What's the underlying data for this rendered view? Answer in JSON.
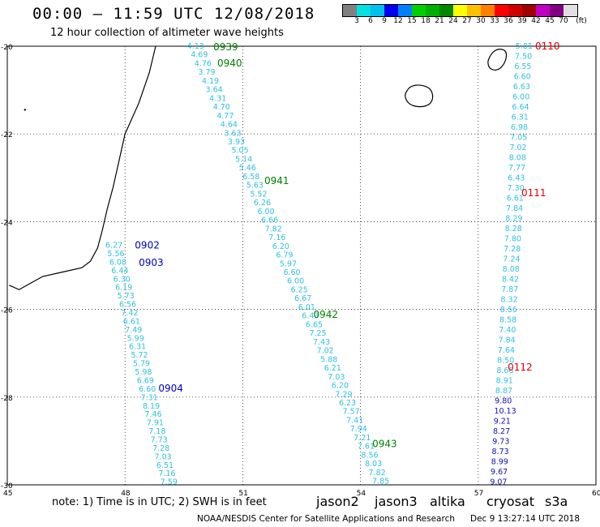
{
  "header": {
    "title": "00:00 – 11:59 UTC 12/08/2018",
    "subtitle": "12 hour collection of altimeter wave heights"
  },
  "color_scale": {
    "unit_label": "(ft)",
    "colors": [
      "#808080",
      "#00e0e0",
      "#00c0f0",
      "#0000f0",
      "#0080ff",
      "#00d000",
      "#00b000",
      "#008800",
      "#ffff00",
      "#ffc000",
      "#ff8000",
      "#ff0000",
      "#d00000",
      "#a00000",
      "#c000c0",
      "#800080",
      "#e0e0e0"
    ],
    "ticks": [
      "3",
      "6",
      "9",
      "12",
      "15",
      "18",
      "21",
      "24",
      "27",
      "30",
      "33",
      "36",
      "39",
      "42",
      "45",
      "70"
    ]
  },
  "map": {
    "lat_ticks": [
      "-20",
      "-22",
      "-24",
      "-26",
      "-28",
      "-30"
    ],
    "lon_ticks": [
      "45",
      "48",
      "51",
      "54",
      "57",
      "60"
    ]
  },
  "tracks": [
    {
      "name": "track-west",
      "color": "#30c0e0",
      "times": [
        {
          "text": "0902",
          "color": "#0000c0",
          "lat": -24.52,
          "lon": 48.25
        },
        {
          "text": "0903",
          "color": "#0000c0",
          "lat": -24.92,
          "lon": 48.35
        },
        {
          "text": "0904",
          "color": "#0000c0",
          "lat": -27.78,
          "lon": 48.85
        }
      ],
      "labels": [
        "6.27",
        "5.56",
        "6.08",
        "6.44",
        "6.30",
        "6.19",
        "5.73",
        "6.56",
        "7.42",
        "6.61",
        "7.49",
        "5.99",
        "6.31",
        "5.72",
        "5.79",
        "5.98",
        "6.69",
        "6.60",
        "7.31",
        "8.19",
        "7.46",
        "7.91",
        "7.18",
        "7.73",
        "7.28",
        "7.03",
        "6.51",
        "7.16",
        "7.59"
      ],
      "start": [
        -24.52,
        47.5
      ],
      "end": [
        -29.92,
        48.9
      ]
    },
    {
      "name": "track-middle",
      "color": "#30c0e0",
      "times": [
        {
          "text": "0939",
          "color": "#008000",
          "lat": -20.0,
          "lon": 50.25
        },
        {
          "text": "0940",
          "color": "#008000",
          "lat": -20.37,
          "lon": 50.35
        },
        {
          "text": "0941",
          "color": "#008000",
          "lat": -23.05,
          "lon": 51.55
        },
        {
          "text": "0942",
          "color": "#008000",
          "lat": -26.1,
          "lon": 52.8
        },
        {
          "text": "0943",
          "color": "#008000",
          "lat": -29.05,
          "lon": 54.3
        }
      ],
      "labels": [
        "4.13",
        "4.69",
        "4.76",
        "3.79",
        "4.19",
        "3.64",
        "4.31",
        "4.70",
        "4.77",
        "4.64",
        "3.63",
        "3.93",
        "5.05",
        "5.14",
        "5.46",
        "6.58",
        "5.63",
        "5.52",
        "6.26",
        "6.00",
        "6.66",
        "7.82",
        "7.16",
        "6.20",
        "6.79",
        "5.97",
        "6.60",
        "6.00",
        "6.25",
        "6.67",
        "6.01",
        "6.43",
        "6.65",
        "7.25",
        "7.43",
        "7.02",
        "5.88",
        "6.21",
        "7.03",
        "6.20",
        "7.29",
        "6.23",
        "7.57",
        "7.41",
        "7.94",
        "7.21",
        "7.61",
        "8.56",
        "8.03",
        "7.82",
        "7.85"
      ],
      "start": [
        -19.98,
        49.58
      ],
      "end": [
        -29.9,
        54.3
      ]
    },
    {
      "name": "track-east",
      "color": "#30c0e0",
      "times": [
        {
          "text": "0110",
          "color": "#e00000",
          "lat": -19.98,
          "lon": 58.45
        },
        {
          "text": "0111",
          "color": "#e00000",
          "lat": -23.33,
          "lon": 58.1
        },
        {
          "text": "0112",
          "color": "#e00000",
          "lat": -27.3,
          "lon": 57.75
        }
      ],
      "labels": [
        "5.81",
        "7.50",
        "6.55",
        "6.60",
        "6.63",
        "6.00",
        "6.64",
        "6.31",
        "6.98",
        "7.05",
        "7.02",
        "8.08",
        "7.77",
        "6.43",
        "7.30",
        "6.61",
        "7.84",
        "8.29",
        "8.28",
        "7.80",
        "7.28",
        "7.24",
        "8.08",
        "8.42",
        "7.87",
        "8.32",
        "8.56",
        "8.58",
        "7.40",
        "7.84",
        "7.64",
        "8.50",
        "8.68",
        "8.91",
        "8.87",
        "9.80",
        "10.13",
        "9.21",
        "8.27",
        "9.73",
        "8.73",
        "8.99",
        "9.67",
        "9.07"
      ],
      "start": [
        -19.98,
        57.95
      ],
      "end": [
        -29.92,
        57.3
      ],
      "dark_from": 35
    }
  ],
  "footer": {
    "note": "note: 1) Time is in UTC; 2) SWH is in feet",
    "legend": [
      {
        "label": "jason2",
        "color": "#0000d0"
      },
      {
        "label": "jason3",
        "color": "#009000"
      },
      {
        "label": "altika",
        "color": "#ff9900"
      },
      {
        "label": "cryosat",
        "color": "#e00000"
      },
      {
        "label": "s3a",
        "color": "#e00000"
      }
    ],
    "credit": "NOAA/NESDIS Center for Satellite Applications and Research",
    "timestamp": "Dec  9 13:27:14 UTC 2018"
  }
}
